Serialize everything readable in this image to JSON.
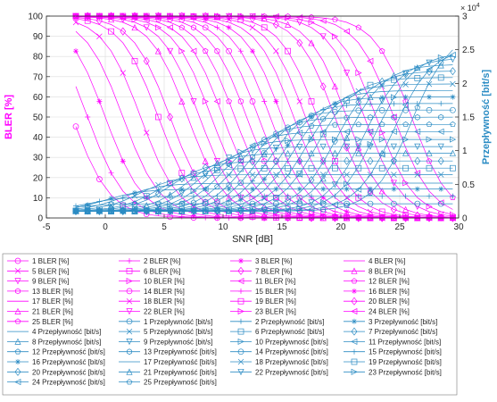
{
  "chart_data": {
    "type": "line",
    "xlabel": "SNR [dB]",
    "ylabel_left": "BLER [%]",
    "ylabel_right": "Przepływność [bit/s]",
    "right_axis_exponent": "× 10^4",
    "xlim": [
      -5,
      30
    ],
    "ylim_left": [
      0,
      100
    ],
    "ylim_right": [
      0,
      3.0
    ],
    "right_axis_multiplier": 10000,
    "grid": true,
    "legend_location": "below plot, 4 columns",
    "x_ticks": [
      "-5",
      "0",
      "5",
      "10",
      "15",
      "20",
      "25",
      "30"
    ],
    "y_left_ticks": [
      "0",
      "10",
      "20",
      "30",
      "40",
      "50",
      "60",
      "70",
      "80",
      "90",
      "100"
    ],
    "y_right_ticks": [
      "0",
      "0.5",
      "1",
      "1.5",
      "2",
      "2.5",
      "3"
    ],
    "colors": {
      "bler": "#ff00ff",
      "throughput": "#2b8cc4"
    },
    "x": [
      -2.5,
      -1.5,
      -0.5,
      0.5,
      1.5,
      2.5,
      3.5,
      4.5,
      5.5,
      6.5,
      7.5,
      8.5,
      9.5,
      10.5,
      11.5,
      12.5,
      13.5,
      14.5,
      15.5,
      16.5,
      17.5,
      18.5,
      19.5,
      20.5,
      21.5,
      22.5,
      23.5,
      24.5,
      25.5,
      26.5,
      27.5,
      28.5,
      29.5
    ],
    "bler_midpoints_db": [
      -2.8,
      -1.5,
      0.0,
      1.5,
      3.0,
      4.5,
      5.5,
      7.0,
      8.0,
      9.0,
      10.0,
      11.0,
      12.0,
      13.0,
      14.0,
      15.0,
      16.0,
      17.0,
      18.0,
      19.5,
      20.5,
      22.0,
      23.0,
      24.5,
      26.0
    ],
    "bler_slope_db": 1.6,
    "throughput_max_bit_s": [
      1150,
      2300,
      3400,
      4300,
      5600,
      6600,
      7700,
      8900,
      9900,
      11000,
      12200,
      13300,
      14400,
      15500,
      16500,
      17500,
      18500,
      19500,
      20500,
      21500,
      22500,
      23500,
      24300,
      25000,
      27500
    ],
    "legend": {
      "bler_suffix": "BLER [%]",
      "throughput_suffix": "Przepływność [bit/s]",
      "markers": [
        "o",
        "+",
        "*",
        "none",
        "x",
        "s",
        "d",
        "^",
        "v",
        ">",
        "<",
        "p",
        "h",
        "o",
        "+",
        "*",
        "none",
        "x",
        "s",
        "d",
        "^",
        "v",
        ">",
        "<",
        "p"
      ]
    }
  },
  "plot_labels": {
    "xlabel": "SNR [dB]",
    "ylabel_left": "BLER [%]",
    "ylabel_right": "Przepływność [bit/s]",
    "exponent": "× 10",
    "exponent_power": "4"
  }
}
